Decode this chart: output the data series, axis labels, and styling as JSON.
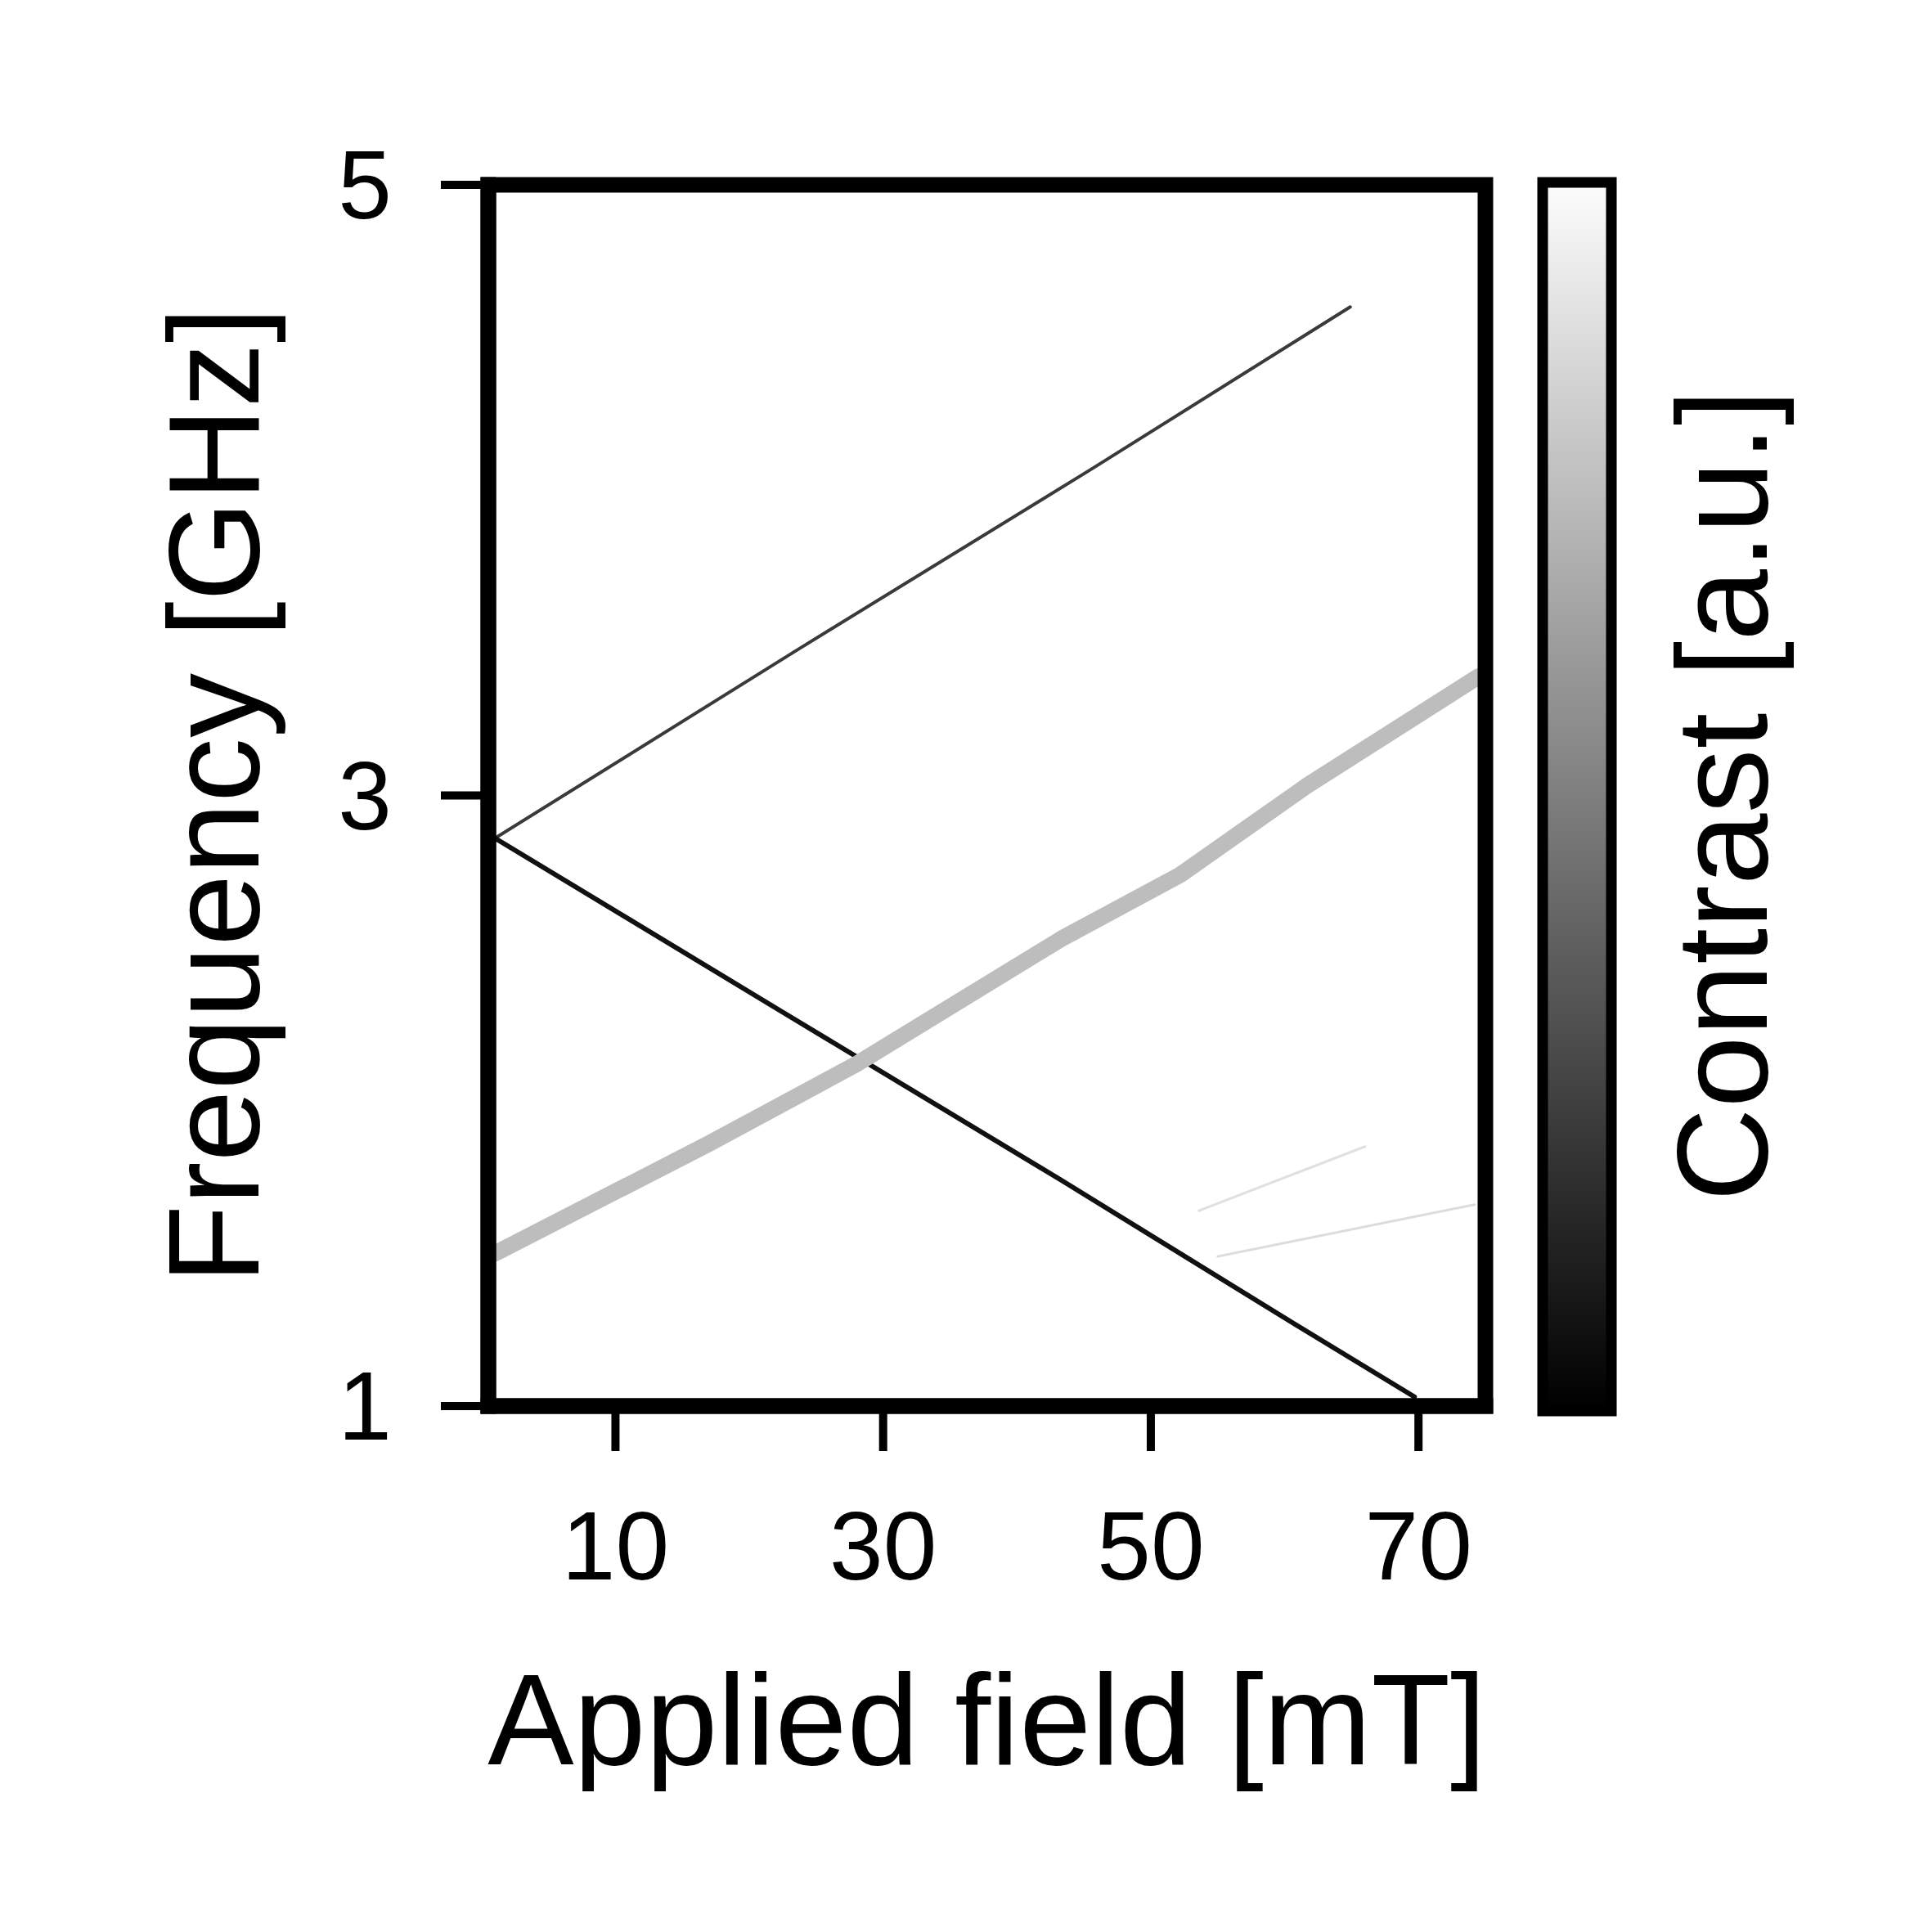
{
  "chart_data": {
    "type": "line",
    "xlabel": "Applied field [mT]",
    "ylabel": "Frequency [GHz]",
    "clabel": "Contrast [a.u.]",
    "xlim": [
      0.5,
      75
    ],
    "xticks": [
      10,
      30,
      50,
      70
    ],
    "ylim": [
      1,
      5
    ],
    "yticks": [
      1,
      3,
      5
    ],
    "series": [
      {
        "color": "#3a3a3a",
        "x": [
          1,
          23.7,
          45.6,
          64.9
        ],
        "values": [
          2.86,
          3.48,
          4.07,
          4.6
        ]
      },
      {
        "color": "#111111",
        "x": [
          1,
          22.5,
          43.3,
          60.7,
          69.7
        ],
        "values": [
          2.86,
          2.29,
          1.74,
          1.27,
          1.03
        ]
      },
      {
        "color": "#bdbdbd",
        "x": [
          1,
          17,
          28,
          43.3,
          52.2,
          61.6,
          74.5
        ],
        "values": [
          1.5,
          1.86,
          2.12,
          2.53,
          2.74,
          3.03,
          3.39
        ]
      },
      {
        "color": "#dcdcdc",
        "x": [
          55,
          74.2
        ],
        "values": [
          1.49,
          1.66
        ]
      },
      {
        "color": "#e0e0e0",
        "x": [
          53.6,
          66
        ],
        "values": [
          1.64,
          1.85
        ]
      }
    ]
  }
}
